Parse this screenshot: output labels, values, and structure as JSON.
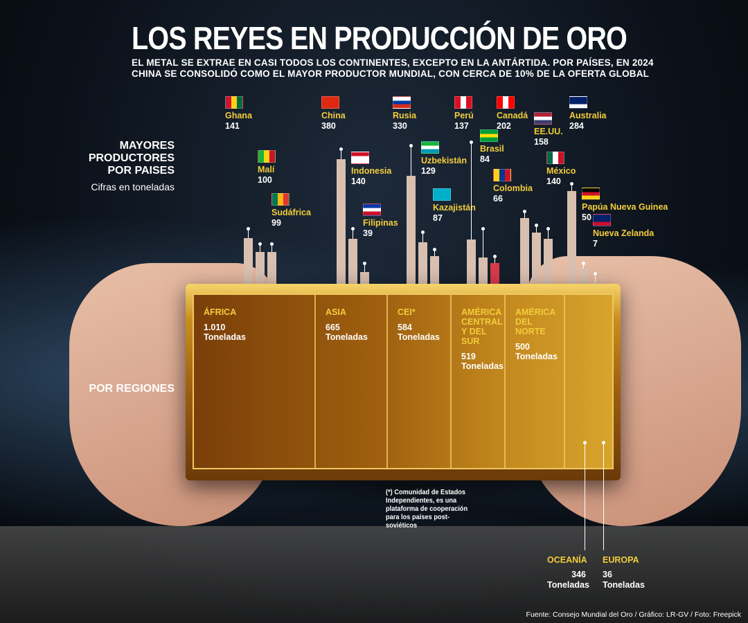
{
  "title": "LOS REYES EN PRODUCCIÓN DE ORO",
  "subtitle": "EL METAL SE EXTRAE EN CASI TODOS LOS CONTINENTES, EXCEPTO EN LA ANTÁRTIDA. POR PAÍSES, EN 2024 CHINA SE CONSOLIDÓ COMO EL MAYOR PRODUCTOR MUNDIAL, CON CERCA DE 10% DE LA OFERTA GLOBAL",
  "countries_heading": "MAYORES PRODUCTORES POR PAISES",
  "units_note": "Cifras en toneladas",
  "regions_heading": "POR REGIONES",
  "footnote": "(*) Comunidad de Estados Independientes, es una plataforma de cooperación para los países post-soviéticos",
  "source": "Fuente: Consejo Mundial del Oro / Gráfico: LR-GV / Foto: Freepick",
  "colors": {
    "bar": "#d9bfb0",
    "highlight": "#d83a4a",
    "label": "#f3cd3a",
    "gold": "#c98e1f"
  },
  "chart_data": [
    {
      "type": "bar",
      "categories": [
        "Ghana",
        "Malí",
        "Sudáfrica",
        "China",
        "Indonesia",
        "Filipinas",
        "Rusia",
        "Uzbekistán",
        "Kazajistán",
        "Perú",
        "Brasil",
        "Colombia",
        "Canadá",
        "EE.UU.",
        "México",
        "Australia",
        "Papúa Nueva Guinea",
        "Nueva Zelanda"
      ],
      "values": [
        141,
        100,
        99,
        380,
        140,
        39,
        330,
        129,
        87,
        137,
        84,
        66,
        202,
        158,
        140,
        284,
        50,
        7
      ],
      "flags": [
        "flag-ghana-icon",
        "flag-mali-icon",
        "flag-south-africa-icon",
        "flag-china-icon",
        "flag-indonesia-icon",
        "flag-philippines-icon",
        "flag-russia-icon",
        "flag-uzbekistan-icon",
        "flag-kazakhstan-icon",
        "flag-peru-icon",
        "flag-brazil-icon",
        "flag-colombia-icon",
        "flag-canada-icon",
        "flag-usa-icon",
        "flag-mexico-icon",
        "flag-australia-icon",
        "flag-png-icon",
        "flag-new-zealand-icon"
      ],
      "highlight": "Colombia",
      "title": "MAYORES PRODUCTORES POR PAISES",
      "unit": "Cifras en toneladas"
    },
    {
      "type": "table",
      "title": "POR REGIONES",
      "regions": [
        {
          "name": "ÁFRICA",
          "value": "1.010",
          "unit": "Toneladas"
        },
        {
          "name": "ASIA",
          "value": "665",
          "unit": "Toneladas"
        },
        {
          "name": "CEI*",
          "value": "584",
          "unit": "Toneladas"
        },
        {
          "name": "AMÉRICA CENTRAL Y DEL SUR",
          "value": "519",
          "unit": "Toneladas"
        },
        {
          "name": "AMÉRICA DEL NORTE",
          "value": "500",
          "unit": "Toneladas"
        },
        {
          "name": "OCEANÍA",
          "value": "346",
          "unit": "Toneladas"
        },
        {
          "name": "EUROPA",
          "value": "36",
          "unit": "Toneladas"
        }
      ]
    }
  ]
}
